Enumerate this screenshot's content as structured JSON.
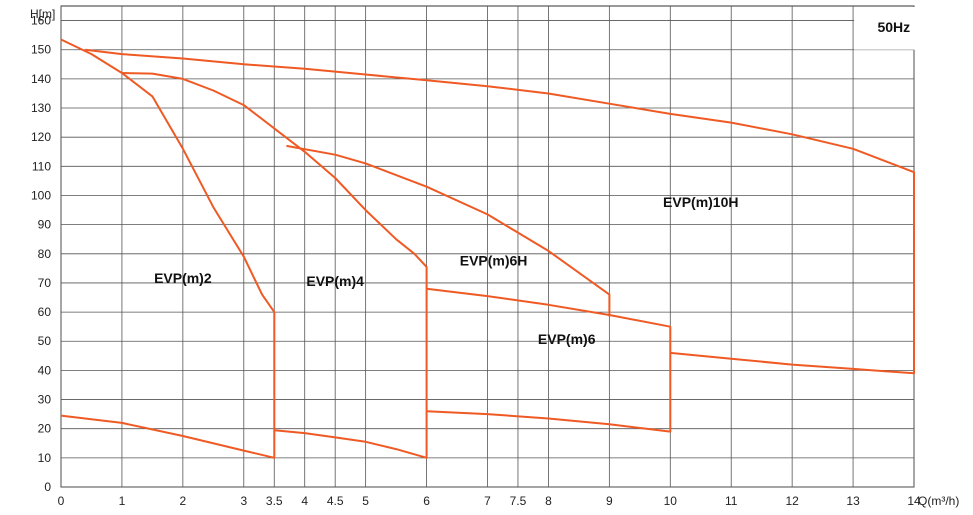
{
  "chart_data": {
    "type": "line",
    "title": "",
    "xlabel": "Q(m³/h)",
    "ylabel": "H[m]",
    "xlim": [
      0,
      14
    ],
    "ylim": [
      0,
      165
    ],
    "x_ticks": [
      0,
      1,
      2,
      3,
      3.5,
      4,
      4.5,
      5,
      6,
      7,
      7.5,
      8,
      9,
      10,
      11,
      12,
      13,
      14
    ],
    "x_tick_labels": [
      "0",
      "1",
      "2",
      "3",
      "3.5",
      "4",
      "4.5",
      "5",
      "6",
      "7",
      "7.5",
      "8",
      "9",
      "10",
      "11",
      "12",
      "13",
      "14"
    ],
    "y_ticks": [
      0,
      10,
      20,
      30,
      40,
      50,
      60,
      70,
      80,
      90,
      100,
      110,
      120,
      130,
      140,
      150,
      160
    ],
    "y_tick_labels": [
      "0",
      "10",
      "20",
      "30",
      "40",
      "50",
      "60",
      "70",
      "80",
      "90",
      "100",
      "110",
      "120",
      "130",
      "140",
      "150",
      "160"
    ],
    "grid": true,
    "frequency_label": "50Hz",
    "line_color": "#ef5a24",
    "series": [
      {
        "name": "EVP(m)2",
        "label_pos": [
          2,
          70
        ],
        "points": [
          [
            0,
            24.5
          ],
          [
            1,
            22
          ],
          [
            2,
            17.5
          ],
          [
            3,
            12.5
          ],
          [
            3.5,
            10
          ],
          [
            3.5,
            60
          ],
          [
            3.3,
            66
          ],
          [
            3,
            79
          ],
          [
            2.5,
            96
          ],
          [
            2,
            116
          ],
          [
            1.5,
            134
          ],
          [
            1,
            142
          ],
          [
            0.5,
            148.5
          ],
          [
            0,
            153.5
          ]
        ]
      },
      {
        "name": "EVP(m)4",
        "label_pos": [
          4.5,
          69
        ],
        "points": [
          [
            3.5,
            19.5
          ],
          [
            4,
            18.5
          ],
          [
            4.5,
            17
          ],
          [
            5,
            15.5
          ],
          [
            5.5,
            13
          ],
          [
            6,
            10
          ],
          [
            6,
            75.5
          ],
          [
            5.8,
            80
          ],
          [
            5.5,
            85
          ],
          [
            5,
            95
          ],
          [
            4.5,
            106
          ],
          [
            4,
            115
          ],
          [
            3.5,
            123
          ],
          [
            3,
            131
          ],
          [
            2.5,
            136
          ],
          [
            2,
            140
          ],
          [
            1.5,
            141.8
          ],
          [
            1,
            142
          ]
        ]
      },
      {
        "name": "EVP(m)6H",
        "label_pos": [
          7.1,
          76
        ],
        "points": [
          [
            3.7,
            117
          ],
          [
            4.5,
            114
          ],
          [
            5,
            111
          ],
          [
            6,
            103
          ],
          [
            7,
            93.5
          ],
          [
            8,
            81
          ],
          [
            9,
            66
          ],
          [
            9,
            58.5
          ]
        ]
      },
      {
        "name": "EVP(m)6",
        "label_pos": [
          8.3,
          49
        ],
        "points": [
          [
            6,
            26
          ],
          [
            7,
            25
          ],
          [
            8,
            23.5
          ],
          [
            9,
            21.5
          ],
          [
            10,
            19
          ],
          [
            10,
            55
          ],
          [
            9,
            59
          ],
          [
            8,
            62.5
          ],
          [
            7,
            65.5
          ],
          [
            6,
            68
          ]
        ]
      },
      {
        "name": "EVP(m)10H",
        "label_pos": [
          10.5,
          96
        ],
        "points": [
          [
            10,
            46
          ],
          [
            11,
            44
          ],
          [
            12,
            42
          ],
          [
            13,
            40.5
          ],
          [
            14,
            39
          ],
          [
            14,
            108
          ],
          [
            13,
            116
          ],
          [
            12,
            121
          ],
          [
            11,
            125
          ],
          [
            10,
            128
          ],
          [
            9,
            131.5
          ],
          [
            8,
            135
          ],
          [
            7,
            137.5
          ],
          [
            6,
            139.5
          ],
          [
            5,
            141.5
          ],
          [
            4,
            143.5
          ],
          [
            3,
            145
          ],
          [
            2,
            147
          ],
          [
            1,
            148.5
          ],
          [
            0.4,
            150
          ]
        ]
      }
    ]
  }
}
